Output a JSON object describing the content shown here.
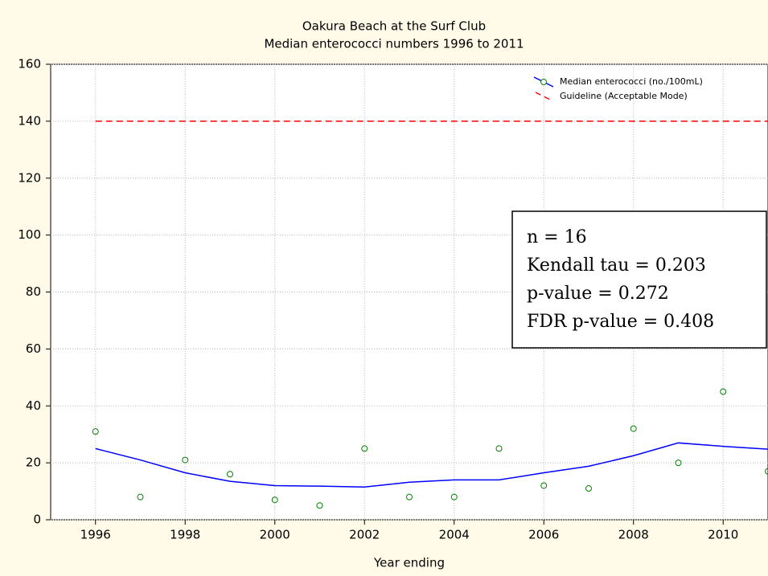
{
  "chart_data": {
    "type": "scatter",
    "title": "Oakura Beach at the Surf Club",
    "subtitle": "Median enterococci numbers 1996 to 2011",
    "x_label": "Year ending",
    "x": [
      1996,
      1997,
      1998,
      1999,
      2000,
      2001,
      2002,
      2003,
      2004,
      2005,
      2006,
      2007,
      2008,
      2009,
      2010,
      2011
    ],
    "series": [
      {
        "name": "Median enterococci (no./100mL)",
        "color": "#008000",
        "line_color": "#0000ff",
        "values": [
          31,
          8,
          21,
          16,
          7,
          5,
          25,
          8,
          8,
          25,
          12,
          11,
          32,
          20,
          45,
          17
        ],
        "smooth_values": [
          25,
          21,
          16.5,
          13.5,
          12,
          11.8,
          11.5,
          13.2,
          14,
          14,
          16.5,
          18.8,
          22.5,
          27,
          25.8,
          24.8
        ]
      },
      {
        "name": "Guideline (Acceptable Mode)",
        "color": "#ff0000",
        "values": [
          140,
          140,
          140,
          140,
          140,
          140,
          140,
          140,
          140,
          140,
          140,
          140,
          140,
          140,
          140,
          140
        ]
      }
    ],
    "annotations": [
      "n = 16",
      "Kendall tau = 0.203",
      "p-value = 0.272",
      "FDR p-value = 0.408"
    ],
    "xlim": [
      1995,
      2011
    ],
    "xticks": [
      1996,
      1998,
      2000,
      2002,
      2004,
      2006,
      2008,
      2010
    ],
    "ylim": [
      0,
      160
    ],
    "yticks": [
      0,
      20,
      40,
      60,
      80,
      100,
      120,
      140,
      160
    ],
    "grid": true,
    "legend": "top-right"
  }
}
